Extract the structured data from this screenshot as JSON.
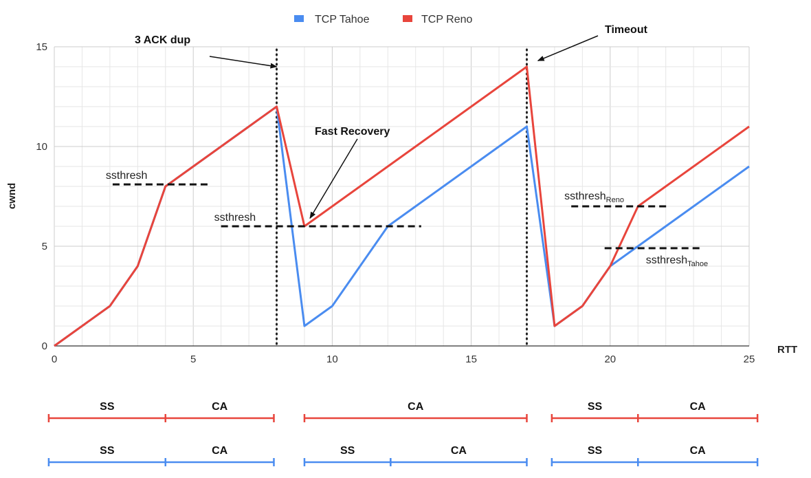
{
  "legend": [
    {
      "label": "TCP Tahoe",
      "color": "#4a8cf0"
    },
    {
      "label": "TCP Reno",
      "color": "#e8453c"
    }
  ],
  "chart_data": {
    "type": "line",
    "xlabel": "RTT",
    "ylabel": "cwnd",
    "xlim": [
      0,
      25
    ],
    "ylim": [
      0,
      15
    ],
    "xticks": [
      0,
      5,
      10,
      15,
      20,
      25
    ],
    "yticks": [
      0,
      5,
      10,
      15
    ],
    "grid": true,
    "legend_position": "top-center",
    "series": [
      {
        "name": "TCP Tahoe",
        "color": "#4a8cf0",
        "x": [
          0,
          1,
          2,
          3,
          4,
          5,
          6,
          7,
          8,
          9,
          10,
          11,
          12,
          13,
          14,
          15,
          16,
          17,
          18,
          19,
          20,
          21,
          22,
          23,
          24,
          25
        ],
        "y": [
          0,
          1,
          2,
          4,
          8,
          9,
          10,
          11,
          12,
          1,
          2,
          4,
          6,
          7,
          8,
          9,
          10,
          11,
          1,
          2,
          4,
          5,
          6,
          7,
          8,
          9
        ]
      },
      {
        "name": "TCP Reno",
        "color": "#e8453c",
        "x": [
          0,
          1,
          2,
          3,
          4,
          5,
          6,
          7,
          8,
          9,
          10,
          11,
          12,
          13,
          14,
          15,
          16,
          17,
          18,
          19,
          20,
          21,
          22,
          23,
          24,
          25
        ],
        "y": [
          0,
          1,
          2,
          4,
          8,
          9,
          10,
          11,
          12,
          6,
          7,
          8,
          9,
          10,
          11,
          12,
          13,
          14,
          1,
          2,
          4,
          7,
          8,
          9,
          10,
          11
        ]
      }
    ],
    "event_lines": [
      8,
      17
    ],
    "thresholds": [
      {
        "label": "ssthresh",
        "sub": "",
        "y": 8.1,
        "x_from": 2.1,
        "x_to": 5.6
      },
      {
        "label": "ssthresh",
        "sub": "",
        "y": 6.0,
        "x_from": 6.0,
        "x_to": 13.2
      },
      {
        "label": "ssthresh",
        "sub": "Reno",
        "y": 7.0,
        "x_from": 18.6,
        "x_to": 22.1
      },
      {
        "label": "ssthresh",
        "sub": "Tahoe",
        "y": 4.9,
        "x_from": 19.8,
        "x_to": 23.3
      }
    ],
    "annotations": [
      {
        "text": "3 ACK dup",
        "target_x": 8,
        "target_y": 14.0
      },
      {
        "text": "Fast Recovery",
        "target_x": 9.2,
        "target_y": 6.4
      },
      {
        "text": "Timeout",
        "target_x": 17.4,
        "target_y": 14.3
      }
    ],
    "phases": [
      {
        "series": "TCP Reno",
        "color": "#e8453c",
        "segments": [
          {
            "label": "SS",
            "from": -0.2,
            "to": 4
          },
          {
            "label": "CA",
            "from": 4,
            "to": 7.9
          },
          {
            "label": "CA",
            "from": 9.0,
            "to": 17.0
          },
          {
            "label": "SS",
            "from": 17.9,
            "to": 21.0
          },
          {
            "label": "CA",
            "from": 21.0,
            "to": 25.3
          }
        ]
      },
      {
        "series": "TCP Tahoe",
        "color": "#4a8cf0",
        "segments": [
          {
            "label": "SS",
            "from": -0.2,
            "to": 4
          },
          {
            "label": "CA",
            "from": 4,
            "to": 7.9
          },
          {
            "label": "SS",
            "from": 9.0,
            "to": 12.1
          },
          {
            "label": "CA",
            "from": 12.1,
            "to": 17.0
          },
          {
            "label": "SS",
            "from": 17.9,
            "to": 21.0
          },
          {
            "label": "CA",
            "from": 21.0,
            "to": 25.3
          }
        ]
      }
    ]
  }
}
